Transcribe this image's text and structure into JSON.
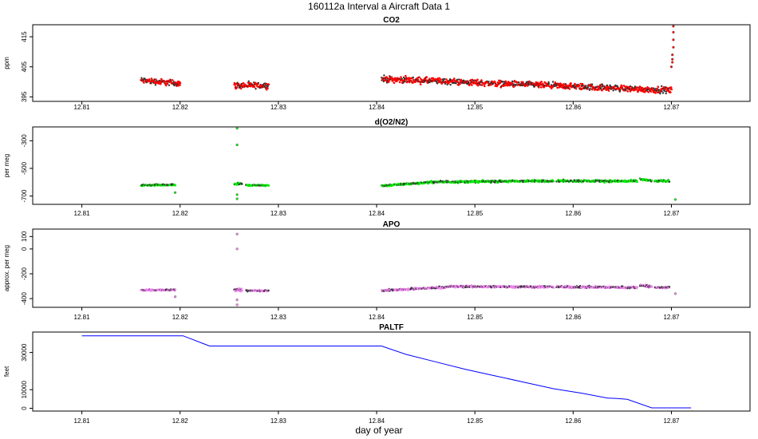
{
  "figure": {
    "title": "160112a   Interval a Aircraft Data 1",
    "xlabel": "day of year"
  },
  "colors": {
    "co2": "#ff0000",
    "o2n2": "#00ee00",
    "apo": "#ee82ee",
    "paltf": "#0000ff",
    "outline": "#000000"
  },
  "chart_data": [
    {
      "type": "scatter",
      "name": "co2",
      "title": "CO2",
      "ylabel": "ppm",
      "xlim": [
        12.805,
        12.878
      ],
      "ylim": [
        393.5,
        419
      ],
      "yticks": [
        395,
        405,
        415
      ],
      "xticks": [
        12.81,
        12.82,
        12.83,
        12.84,
        12.85,
        12.86,
        12.87
      ],
      "segments": [
        {
          "x": [
            12.816,
            12.82
          ],
          "y": [
            400.5,
            399.5
          ],
          "spread": 1.2
        },
        {
          "x": [
            12.8255,
            12.829
          ],
          "y": [
            398.8,
            398.8
          ],
          "spread": 1.2
        },
        {
          "x": [
            12.8405,
            12.87
          ],
          "y": [
            401.0,
            397.2
          ],
          "spread": 1.2
        }
      ],
      "extra_points": [
        {
          "x": 12.8702,
          "y": 418.5
        },
        {
          "x": 12.8702,
          "y": 416.5
        },
        {
          "x": 12.8702,
          "y": 414.0
        },
        {
          "x": 12.8702,
          "y": 411.5
        },
        {
          "x": 12.8701,
          "y": 409.0
        },
        {
          "x": 12.8701,
          "y": 407.5
        },
        {
          "x": 12.8701,
          "y": 406.5
        },
        {
          "x": 12.87,
          "y": 405.0
        }
      ]
    },
    {
      "type": "scatter",
      "name": "o2n2",
      "title": "d(O2/N2)",
      "ylabel": "per meg",
      "xlim": [
        12.805,
        12.878
      ],
      "ylim": [
        -760,
        -200
      ],
      "yticks": [
        -700,
        -500,
        -300
      ],
      "ytick_labels": [
        "-700",
        "-500",
        "-300"
      ],
      "xticks": [
        12.81,
        12.82,
        12.83,
        12.84,
        12.85,
        12.86,
        12.87
      ],
      "segments": [
        {
          "x": [
            12.816,
            12.8195
          ],
          "y": [
            -622,
            -618
          ],
          "spread": 6
        },
        {
          "x": [
            12.8255,
            12.8263
          ],
          "y": [
            -610,
            -610
          ],
          "spread": 12
        },
        {
          "x": [
            12.8267,
            12.829
          ],
          "y": [
            -622,
            -622
          ],
          "spread": 6
        },
        {
          "x": [
            12.8405,
            12.8455
          ],
          "y": [
            -625,
            -600
          ],
          "spread": 8
        },
        {
          "x": [
            12.8455,
            12.858
          ],
          "y": [
            -598,
            -590
          ],
          "spread": 9
        },
        {
          "x": [
            12.8583,
            12.8665
          ],
          "y": [
            -590,
            -592
          ],
          "spread": 9
        },
        {
          "x": [
            12.8668,
            12.868
          ],
          "y": [
            -578,
            -590
          ],
          "spread": 10
        },
        {
          "x": [
            12.8683,
            12.8698
          ],
          "y": [
            -592,
            -590
          ],
          "spread": 8
        }
      ],
      "extra_points": [
        {
          "x": 12.8258,
          "y": -210
        },
        {
          "x": 12.8258,
          "y": -330
        },
        {
          "x": 12.8258,
          "y": -690
        },
        {
          "x": 12.8258,
          "y": -720
        },
        {
          "x": 12.8195,
          "y": -675
        },
        {
          "x": 12.8704,
          "y": -725
        }
      ]
    },
    {
      "type": "scatter",
      "name": "apo",
      "title": "APO",
      "ylabel": "approx. per meg",
      "xlim": [
        12.805,
        12.878
      ],
      "ylim": [
        -470,
        160
      ],
      "yticks": [
        -400,
        -200,
        0,
        100
      ],
      "ytick_labels": [
        "-400",
        "-200",
        "0",
        "100"
      ],
      "xticks": [
        12.81,
        12.82,
        12.83,
        12.84,
        12.85,
        12.86,
        12.87
      ],
      "segments": [
        {
          "x": [
            12.816,
            12.8195
          ],
          "y": [
            -330,
            -330
          ],
          "spread": 8
        },
        {
          "x": [
            12.8255,
            12.8263
          ],
          "y": [
            -330,
            -330
          ],
          "spread": 14
        },
        {
          "x": [
            12.8267,
            12.829
          ],
          "y": [
            -335,
            -335
          ],
          "spread": 7
        },
        {
          "x": [
            12.8405,
            12.8475
          ],
          "y": [
            -335,
            -305
          ],
          "spread": 9
        },
        {
          "x": [
            12.8475,
            12.858
          ],
          "y": [
            -302,
            -305
          ],
          "spread": 10
        },
        {
          "x": [
            12.8583,
            12.8665
          ],
          "y": [
            -305,
            -310
          ],
          "spread": 10
        },
        {
          "x": [
            12.8668,
            12.868
          ],
          "y": [
            -290,
            -305
          ],
          "spread": 12
        },
        {
          "x": [
            12.8683,
            12.8698
          ],
          "y": [
            -310,
            -310
          ],
          "spread": 8
        }
      ],
      "extra_points": [
        {
          "x": 12.8258,
          "y": 120
        },
        {
          "x": 12.8258,
          "y": 0
        },
        {
          "x": 12.8258,
          "y": -410
        },
        {
          "x": 12.8258,
          "y": -450
        },
        {
          "x": 12.8195,
          "y": -385
        },
        {
          "x": 12.8704,
          "y": -360
        }
      ]
    },
    {
      "type": "line",
      "name": "paltf",
      "title": "PALTF",
      "ylabel": "feet",
      "xlim": [
        12.805,
        12.878
      ],
      "ylim": [
        -1500,
        41000
      ],
      "yticks": [
        0,
        10000,
        30000
      ],
      "ytick_labels": [
        "0",
        "10000",
        "30000"
      ],
      "xticks": [
        12.81,
        12.82,
        12.83,
        12.84,
        12.85,
        12.86,
        12.87
      ],
      "x": [
        12.81,
        12.8203,
        12.823,
        12.8405,
        12.843,
        12.846,
        12.849,
        12.852,
        12.855,
        12.858,
        12.861,
        12.8635,
        12.8645,
        12.8655,
        12.868,
        12.872
      ],
      "y": [
        39000,
        39000,
        33500,
        33500,
        29000,
        25000,
        21000,
        17500,
        14000,
        10500,
        8000,
        5500,
        5300,
        4800,
        200,
        200
      ]
    }
  ]
}
